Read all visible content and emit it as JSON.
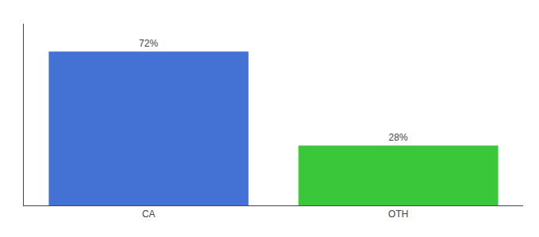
{
  "chart_data": {
    "type": "bar",
    "categories": [
      "CA",
      "OTH"
    ],
    "values": [
      72,
      28
    ],
    "colors": [
      "#4472d4",
      "#3ac73a"
    ],
    "data_labels": true,
    "value_labels": [
      "72%",
      "28%"
    ],
    "ylim": [
      0,
      85
    ],
    "tick_labels": "x",
    "grid": false
  }
}
